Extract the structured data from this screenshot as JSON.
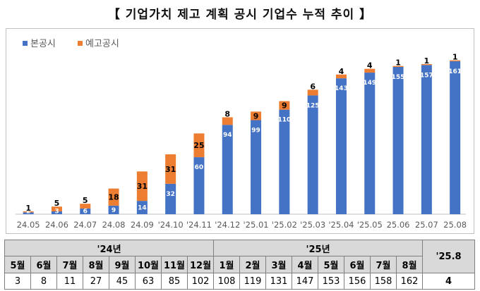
{
  "title": "【 기업가치 제고 계획 공시 기업수 누적 추이 】",
  "colors": {
    "main": "#4472C4",
    "pre": "#ED7D31",
    "grid": "#bfbfbf",
    "header_bg": "#d9d9d9"
  },
  "chart_data": {
    "type": "bar",
    "stacked": true,
    "categories": [
      "24.05",
      "24.06",
      "24.07",
      "24.08",
      "24.09",
      "'24.10",
      "'24.11",
      "'24.12",
      "'25.01",
      "'25.02",
      "'25.03",
      "'25.04",
      "'25.05",
      "25.06",
      "25.07",
      "25.08"
    ],
    "series": [
      {
        "name": "본공시",
        "values": [
          2,
          3,
          6,
          9,
          14,
          32,
          60,
          94,
          99,
          110,
          125,
          143,
          149,
          155,
          157,
          161
        ]
      },
      {
        "name": "예고공시",
        "values": [
          1,
          5,
          5,
          18,
          31,
          31,
          25,
          8,
          9,
          9,
          6,
          4,
          4,
          1,
          1,
          1
        ]
      }
    ],
    "ylim": [
      0,
      175
    ],
    "legend": "top-left",
    "grid": false
  },
  "table": {
    "years": [
      {
        "label": "'24년",
        "span": 8
      },
      {
        "label": "'25년",
        "span": 8
      },
      {
        "label": "'25.8",
        "span": 1
      }
    ],
    "months": [
      "5월",
      "6월",
      "7월",
      "8월",
      "9월",
      "10월",
      "11월",
      "12월",
      "1월",
      "2월",
      "3월",
      "4월",
      "5월",
      "6월",
      "7월",
      "8월"
    ],
    "values": [
      "3",
      "8",
      "11",
      "27",
      "45",
      "63",
      "85",
      "102",
      "108",
      "119",
      "131",
      "147",
      "153",
      "156",
      "158",
      "162"
    ],
    "last_value": "4"
  }
}
